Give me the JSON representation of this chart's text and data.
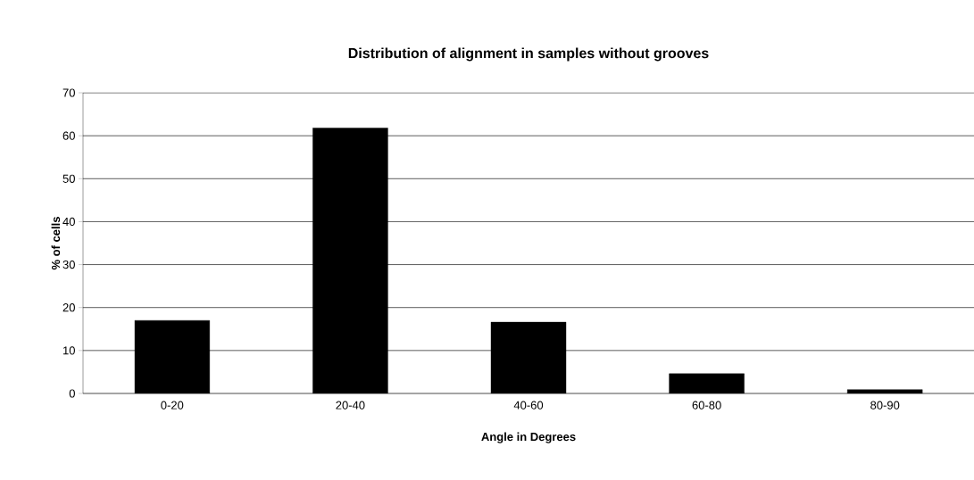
{
  "chart_data": {
    "type": "bar",
    "title": "Distribution of alignment in samples without grooves",
    "xlabel": "Angle in Degrees",
    "ylabel": "% of cells",
    "categories": [
      "0-20",
      "20-40",
      "40-60",
      "60-80",
      "80-90"
    ],
    "values": [
      17,
      61.8,
      16.6,
      4.6,
      0.9
    ],
    "color": "#000000",
    "ylim": [
      0,
      70
    ],
    "yticks": [
      0,
      10,
      20,
      30,
      40,
      50,
      60,
      70
    ],
    "grid": "y"
  }
}
